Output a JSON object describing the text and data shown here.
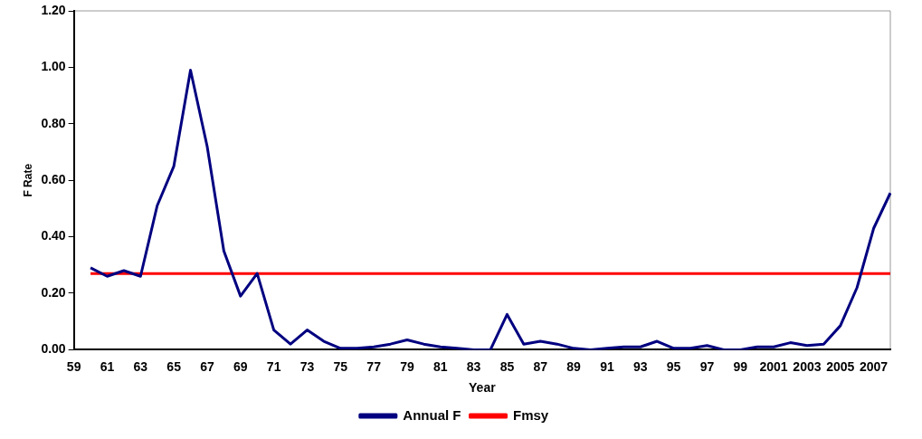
{
  "chart_data": {
    "type": "line",
    "xlabel": "Year",
    "ylabel": "F Rate",
    "categories": [
      "59",
      null,
      "61",
      null,
      "63",
      null,
      "65",
      null,
      "67",
      null,
      "69",
      null,
      "71",
      null,
      "73",
      null,
      "75",
      null,
      "77",
      null,
      "79",
      null,
      "81",
      null,
      "83",
      null,
      "85",
      null,
      "87",
      null,
      "89",
      null,
      "91",
      null,
      "93",
      null,
      "95",
      null,
      "97",
      null,
      "99",
      null,
      "2001",
      null,
      "2003",
      null,
      "2005",
      null,
      "2007",
      null
    ],
    "series": [
      {
        "name": "Annual F",
        "color": "#000080",
        "values": [
          null,
          0.29,
          0.26,
          0.28,
          0.26,
          0.51,
          0.65,
          0.99,
          0.72,
          0.35,
          0.19,
          0.27,
          0.07,
          0.02,
          0.07,
          0.03,
          0.005,
          0.005,
          0.01,
          0.02,
          0.035,
          0.02,
          0.01,
          0.005,
          0,
          0,
          0.125,
          0.02,
          0.03,
          0.02,
          0.005,
          0,
          0.005,
          0.01,
          0.01,
          0.03,
          0.005,
          0.005,
          0.015,
          0,
          0,
          0.01,
          0.01,
          0.025,
          0.015,
          0.02,
          0.085,
          0.22,
          0.43,
          0.555
        ]
      },
      {
        "name": "Fmsy",
        "color": "#ff0000",
        "values": [
          null,
          0.27,
          0.27,
          0.27,
          0.27,
          0.27,
          0.27,
          0.27,
          0.27,
          0.27,
          0.27,
          0.27,
          0.27,
          0.27,
          0.27,
          0.27,
          0.27,
          0.27,
          0.27,
          0.27,
          0.27,
          0.27,
          0.27,
          0.27,
          0.27,
          0.27,
          0.27,
          0.27,
          0.27,
          0.27,
          0.27,
          0.27,
          0.27,
          0.27,
          0.27,
          0.27,
          0.27,
          0.27,
          0.27,
          0.27,
          0.27,
          0.27,
          0.27,
          0.27,
          0.27,
          0.27,
          0.27,
          0.27,
          0.27,
          0.27
        ]
      }
    ],
    "ylim": [
      0,
      1.2
    ],
    "yticks": [
      {
        "value": 0,
        "label": "0.00"
      },
      {
        "value": 0.2,
        "label": "0.20"
      },
      {
        "value": 0.4,
        "label": "0.40"
      },
      {
        "value": 0.6,
        "label": "0.60"
      },
      {
        "value": 0.8,
        "label": "0.80"
      },
      {
        "value": 1,
        "label": "1.00"
      },
      {
        "value": 1.2,
        "label": "1.20"
      }
    ],
    "grid": false,
    "legend": "bottom",
    "marker": "none",
    "line_style": "solid"
  }
}
